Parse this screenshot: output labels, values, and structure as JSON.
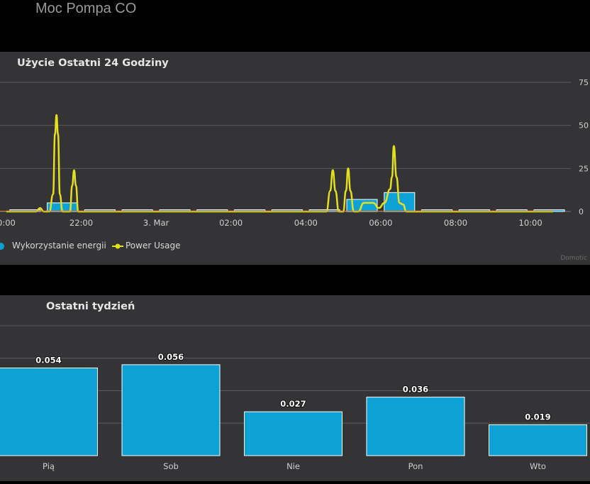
{
  "page_title": "Moc Pompa CO",
  "day_chart_title": "Użycie Ostatni 24 Godziny",
  "week_chart_title": "Ostatni tydzień",
  "credits": "Domotic",
  "colors": {
    "energy": "#0ea1d6",
    "power": "#e5e01d",
    "panel": "#343436",
    "grid": "#5a5a5c"
  },
  "chart_data": [
    {
      "type": "bar",
      "title": "Użycie Ostatni 24 Godziny",
      "x_ticks": [
        "0:00",
        "22:00",
        "3. Mar",
        "02:00",
        "04:00",
        "06:00",
        "08:00",
        "10:00"
      ],
      "y_ticks": [
        "75",
        "50",
        "25",
        "0"
      ],
      "ylim": [
        0,
        75
      ],
      "grid": true,
      "legend_position": "bottom-left",
      "series": [
        {
          "name": "Wykorzystanie energii",
          "type": "bar",
          "x": [
            20.5,
            21.5,
            22.5,
            23.5,
            0.5,
            1.5,
            2.5,
            3.5,
            4.5,
            5.5,
            6.5,
            7.5,
            8.5,
            9.5,
            10.5
          ],
          "values": [
            1,
            5,
            1,
            1,
            1,
            1,
            1,
            1,
            1,
            7,
            11,
            1,
            1,
            1,
            1
          ]
        },
        {
          "name": "Power Usage",
          "type": "line",
          "points": [
            [
              20.0,
              0
            ],
            [
              20.8,
              0
            ],
            [
              20.9,
              2
            ],
            [
              21.0,
              0
            ],
            [
              21.15,
              0
            ],
            [
              21.25,
              10
            ],
            [
              21.3,
              45
            ],
            [
              21.34,
              56
            ],
            [
              21.38,
              45
            ],
            [
              21.43,
              10
            ],
            [
              21.5,
              0
            ],
            [
              21.7,
              0
            ],
            [
              21.76,
              15
            ],
            [
              21.81,
              24
            ],
            [
              21.86,
              15
            ],
            [
              21.92,
              0
            ],
            [
              4.55,
              0
            ],
            [
              4.65,
              12
            ],
            [
              4.72,
              24
            ],
            [
              4.79,
              12
            ],
            [
              4.88,
              0
            ],
            [
              5.0,
              0
            ],
            [
              5.07,
              12
            ],
            [
              5.13,
              25
            ],
            [
              5.19,
              12
            ],
            [
              5.28,
              0
            ],
            [
              5.4,
              0
            ],
            [
              5.55,
              5
            ],
            [
              5.8,
              5
            ],
            [
              5.95,
              2
            ],
            [
              6.1,
              5
            ],
            [
              6.25,
              13
            ],
            [
              6.3,
              20
            ],
            [
              6.35,
              38
            ],
            [
              6.42,
              20
            ],
            [
              6.5,
              5
            ],
            [
              6.6,
              4
            ],
            [
              6.68,
              0
            ],
            [
              10.6,
              0
            ]
          ]
        }
      ]
    },
    {
      "type": "bar",
      "title": "Ostatni tydzień",
      "categories": [
        "Pią",
        "Sob",
        "Nie",
        "Pon",
        "Wto"
      ],
      "values": [
        0.054,
        0.056,
        0.027,
        0.036,
        0.019
      ],
      "data_labels": [
        "0.054",
        "0.056",
        "0.027",
        "0.036",
        "0.019"
      ],
      "ylim": [
        0,
        0.08
      ],
      "grid": true
    }
  ]
}
